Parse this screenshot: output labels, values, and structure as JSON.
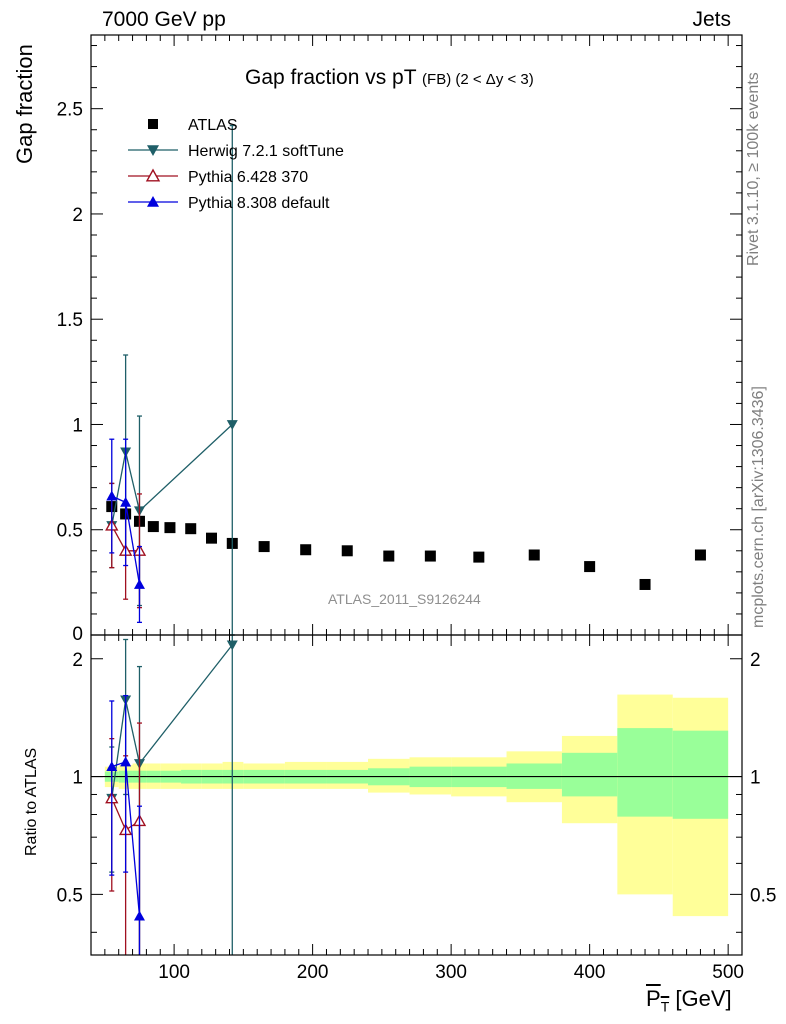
{
  "header": {
    "left": "7000 GeV pp",
    "right": "Jets"
  },
  "side_labels": {
    "rivet": "Rivet 3.1.10, ≥ 100k events",
    "mcplots": "mcplots.cern.ch [arXiv:1306.3436]"
  },
  "analysis_tag": "ATLAS_2011_S9126244",
  "chart_data": [
    {
      "type": "scatter",
      "panel": "main",
      "title_main": "Gap fraction vs pT",
      "title_sub": "(FB) (2 < Δy < 3)",
      "ylabel": "Gap fraction",
      "xlim": [
        40,
        510
      ],
      "ylim": [
        0,
        2.85
      ],
      "yticks": [
        0.5,
        1,
        1.5,
        2,
        2.5
      ],
      "ytick_labels": [
        "0.5",
        "1",
        "1.5",
        "2",
        "2.5"
      ],
      "legend_position": "top-left",
      "series": [
        {
          "name": "ATLAS",
          "color": "#000000",
          "marker": "square",
          "x": [
            55,
            65,
            75,
            85,
            97,
            112,
            127,
            142,
            165,
            195,
            225,
            255,
            285,
            320,
            360,
            400,
            440,
            480
          ],
          "y": [
            0.61,
            0.575,
            0.54,
            0.515,
            0.51,
            0.505,
            0.46,
            0.435,
            0.42,
            0.405,
            0.4,
            0.375,
            0.375,
            0.37,
            0.38,
            0.325,
            0.24,
            0.38
          ]
        },
        {
          "name": "Herwig 7.2.1 softTune",
          "color": "#1f5f68",
          "marker": "triangle-down",
          "x": [
            55,
            65,
            75,
            142
          ],
          "y": [
            0.52,
            0.87,
            0.59,
            1.0
          ],
          "err": [
            0.2,
            0.46,
            0.45,
            1.42
          ]
        },
        {
          "name": "Pythia 6.428 370",
          "color": "#a01020",
          "marker": "triangle-up-open",
          "x": [
            55,
            65,
            75
          ],
          "y": [
            0.52,
            0.4,
            0.4
          ],
          "err": [
            0.2,
            0.23,
            0.27
          ]
        },
        {
          "name": "Pythia 8.308 default",
          "color": "#0000dd",
          "marker": "triangle-up",
          "x": [
            55,
            65,
            75
          ],
          "y": [
            0.66,
            0.63,
            0.24
          ],
          "err": [
            0.27,
            0.3,
            0.18
          ]
        }
      ]
    },
    {
      "type": "scatter",
      "panel": "ratio",
      "ylabel": "Ratio to ATLAS",
      "xlabel": "P_T [GeV]",
      "xlim": [
        40,
        510
      ],
      "ylim": [
        0.35,
        2.3
      ],
      "xticks": [
        100,
        200,
        300,
        400,
        500
      ],
      "xtick_labels": [
        "100",
        "200",
        "300",
        "400",
        "500"
      ],
      "yticks": [
        0.5,
        1,
        2
      ],
      "ytick_labels": [
        "0.5",
        "1",
        "2"
      ],
      "bands": {
        "inner_color": "#99ff99",
        "outer_color": "#ffff99",
        "bins": [
          {
            "x0": 50,
            "x1": 60,
            "g": [
              0.97,
              1.03
            ],
            "y": [
              0.94,
              1.06
            ]
          },
          {
            "x0": 60,
            "x1": 70,
            "g": [
              0.965,
              1.035
            ],
            "y": [
              0.93,
              1.07
            ]
          },
          {
            "x0": 70,
            "x1": 80,
            "g": [
              0.965,
              1.035
            ],
            "y": [
              0.93,
              1.08
            ]
          },
          {
            "x0": 80,
            "x1": 90,
            "g": [
              0.965,
              1.035
            ],
            "y": [
              0.93,
              1.08
            ]
          },
          {
            "x0": 90,
            "x1": 105,
            "g": [
              0.965,
              1.035
            ],
            "y": [
              0.93,
              1.08
            ]
          },
          {
            "x0": 105,
            "x1": 120,
            "g": [
              0.96,
              1.04
            ],
            "y": [
              0.93,
              1.08
            ]
          },
          {
            "x0": 120,
            "x1": 135,
            "g": [
              0.96,
              1.04
            ],
            "y": [
              0.93,
              1.08
            ]
          },
          {
            "x0": 135,
            "x1": 150,
            "g": [
              0.96,
              1.04
            ],
            "y": [
              0.93,
              1.09
            ]
          },
          {
            "x0": 150,
            "x1": 180,
            "g": [
              0.96,
              1.04
            ],
            "y": [
              0.93,
              1.08
            ]
          },
          {
            "x0": 180,
            "x1": 210,
            "g": [
              0.96,
              1.04
            ],
            "y": [
              0.93,
              1.09
            ]
          },
          {
            "x0": 210,
            "x1": 240,
            "g": [
              0.96,
              1.04
            ],
            "y": [
              0.93,
              1.09
            ]
          },
          {
            "x0": 240,
            "x1": 270,
            "g": [
              0.95,
              1.05
            ],
            "y": [
              0.91,
              1.11
            ]
          },
          {
            "x0": 270,
            "x1": 300,
            "g": [
              0.94,
              1.06
            ],
            "y": [
              0.9,
              1.12
            ]
          },
          {
            "x0": 300,
            "x1": 340,
            "g": [
              0.94,
              1.06
            ],
            "y": [
              0.89,
              1.12
            ]
          },
          {
            "x0": 340,
            "x1": 380,
            "g": [
              0.93,
              1.08
            ],
            "y": [
              0.86,
              1.16
            ]
          },
          {
            "x0": 380,
            "x1": 420,
            "g": [
              0.89,
              1.15
            ],
            "y": [
              0.76,
              1.27
            ]
          },
          {
            "x0": 420,
            "x1": 460,
            "g": [
              0.79,
              1.33
            ],
            "y": [
              0.5,
              1.62
            ]
          },
          {
            "x0": 460,
            "x1": 500,
            "g": [
              0.78,
              1.31
            ],
            "y": [
              0.44,
              1.59
            ]
          }
        ]
      },
      "series": [
        {
          "name": "Herwig 7.2.1 softTune",
          "color": "#1f5f68",
          "marker": "triangle-down",
          "x": [
            55,
            65,
            75,
            142
          ],
          "y": [
            0.88,
            1.57,
            1.08,
            2.17
          ],
          "err": [
            0.31,
            0.67,
            0.83,
            2.1
          ]
        },
        {
          "name": "Pythia 6.428 370",
          "color": "#a01020",
          "marker": "triangle-up-open",
          "x": [
            55,
            65,
            75
          ],
          "y": [
            0.88,
            0.73,
            0.77
          ],
          "err": [
            0.37,
            0.4,
            0.6
          ]
        },
        {
          "name": "Pythia 8.308 default",
          "color": "#0000dd",
          "marker": "triangle-up",
          "x": [
            55,
            65,
            75
          ],
          "y": [
            1.06,
            1.09,
            0.44
          ],
          "err": [
            0.5,
            0.52,
            0.4
          ]
        }
      ]
    }
  ]
}
